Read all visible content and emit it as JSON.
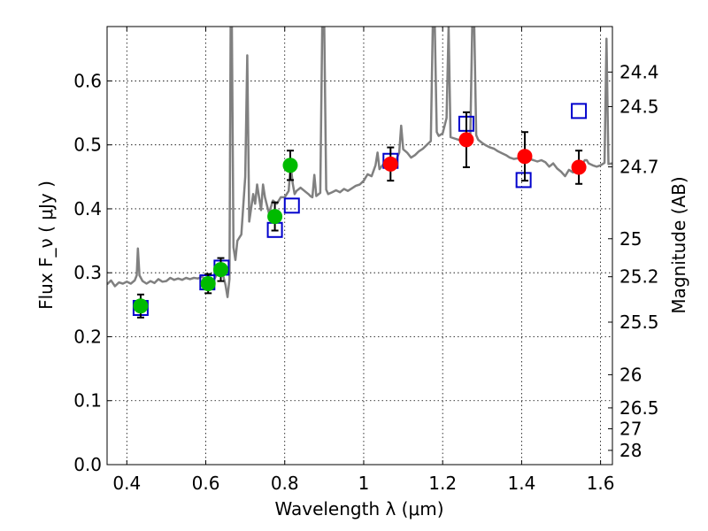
{
  "chart_data": {
    "type": "scatter",
    "xlabel": "Wavelength  λ (μm)",
    "ylabel": "Flux  F_ν  ( μJy )",
    "ylabel_right": "Magnitude (AB)",
    "xlim": [
      0.35,
      1.63
    ],
    "ylim": [
      0.0,
      0.685
    ],
    "grid": true,
    "x_ticks": [
      {
        "value": 0.4,
        "label": "0.4"
      },
      {
        "value": 0.6,
        "label": "0.6"
      },
      {
        "value": 0.8,
        "label": "0.8"
      },
      {
        "value": 1.0,
        "label": "1"
      },
      {
        "value": 1.2,
        "label": "1.2"
      },
      {
        "value": 1.4,
        "label": "1.4"
      },
      {
        "value": 1.6,
        "label": "1.6"
      }
    ],
    "y_ticks": [
      {
        "value": 0.0,
        "label": "0.0"
      },
      {
        "value": 0.1,
        "label": "0.1"
      },
      {
        "value": 0.2,
        "label": "0.2"
      },
      {
        "value": 0.3,
        "label": "0.3"
      },
      {
        "value": 0.4,
        "label": "0.4"
      },
      {
        "value": 0.5,
        "label": "0.5"
      },
      {
        "value": 0.6,
        "label": "0.6"
      }
    ],
    "mag_ticks": [
      {
        "label": "24.4",
        "flux": 0.6138
      },
      {
        "label": "24.5",
        "flux": 0.5598
      },
      {
        "label": "24.7",
        "flux": 0.4656
      },
      {
        "label": "25",
        "flux": 0.3532
      },
      {
        "label": "25.2",
        "flux": 0.2938
      },
      {
        "label": "25.5",
        "flux": 0.2228
      },
      {
        "label": "26",
        "flux": 0.1406
      },
      {
        "label": "26.5",
        "flux": 0.0887
      },
      {
        "label": "27",
        "flux": 0.056
      },
      {
        "label": "28",
        "flux": 0.0223
      }
    ],
    "series": [
      {
        "marker": "circle",
        "color": "#00bb00",
        "points": [
          {
            "x": 0.435,
            "y": 0.248,
            "err": 0.018
          },
          {
            "x": 0.606,
            "y": 0.283,
            "err": 0.015
          },
          {
            "x": 0.638,
            "y": 0.305,
            "err": 0.018
          },
          {
            "x": 0.775,
            "y": 0.388,
            "err": 0.022
          },
          {
            "x": 0.814,
            "y": 0.468,
            "err": 0.023
          }
        ]
      },
      {
        "marker": "circle",
        "color": "#ff0000",
        "points": [
          {
            "x": 1.068,
            "y": 0.47,
            "err": 0.026
          },
          {
            "x": 1.26,
            "y": 0.508,
            "err": 0.043
          },
          {
            "x": 1.408,
            "y": 0.482,
            "err": 0.038
          },
          {
            "x": 1.545,
            "y": 0.465,
            "err": 0.026
          }
        ]
      },
      {
        "marker": "square-open",
        "color": "#0000cc",
        "points": [
          {
            "x": 0.435,
            "y": 0.245
          },
          {
            "x": 0.604,
            "y": 0.285
          },
          {
            "x": 0.64,
            "y": 0.308
          },
          {
            "x": 0.775,
            "y": 0.367
          },
          {
            "x": 0.818,
            "y": 0.405
          },
          {
            "x": 1.068,
            "y": 0.475
          },
          {
            "x": 1.26,
            "y": 0.533
          },
          {
            "x": 1.405,
            "y": 0.445
          },
          {
            "x": 1.545,
            "y": 0.553
          }
        ]
      }
    ],
    "model_spectrum": {
      "color": "#808080",
      "points": [
        [
          0.35,
          0.282
        ],
        [
          0.36,
          0.288
        ],
        [
          0.37,
          0.279
        ],
        [
          0.38,
          0.285
        ],
        [
          0.39,
          0.283
        ],
        [
          0.4,
          0.286
        ],
        [
          0.41,
          0.283
        ],
        [
          0.42,
          0.288
        ],
        [
          0.425,
          0.296
        ],
        [
          0.428,
          0.338
        ],
        [
          0.432,
          0.296
        ],
        [
          0.44,
          0.287
        ],
        [
          0.45,
          0.283
        ],
        [
          0.46,
          0.287
        ],
        [
          0.47,
          0.284
        ],
        [
          0.48,
          0.29
        ],
        [
          0.49,
          0.286
        ],
        [
          0.5,
          0.287
        ],
        [
          0.51,
          0.292
        ],
        [
          0.52,
          0.289
        ],
        [
          0.53,
          0.291
        ],
        [
          0.54,
          0.289
        ],
        [
          0.55,
          0.292
        ],
        [
          0.56,
          0.29
        ],
        [
          0.57,
          0.292
        ],
        [
          0.58,
          0.291
        ],
        [
          0.59,
          0.294
        ],
        [
          0.6,
          0.289
        ],
        [
          0.61,
          0.292
        ],
        [
          0.62,
          0.288
        ],
        [
          0.63,
          0.3
        ],
        [
          0.64,
          0.305
        ],
        [
          0.65,
          0.281
        ],
        [
          0.655,
          0.262
        ],
        [
          0.66,
          0.29
        ],
        [
          0.663,
          0.685
        ],
        [
          0.666,
          0.685
        ],
        [
          0.67,
          0.34
        ],
        [
          0.675,
          0.32
        ],
        [
          0.68,
          0.35
        ],
        [
          0.69,
          0.36
        ],
        [
          0.7,
          0.45
        ],
        [
          0.705,
          0.64
        ],
        [
          0.71,
          0.38
        ],
        [
          0.72,
          0.423
        ],
        [
          0.725,
          0.408
        ],
        [
          0.73,
          0.438
        ],
        [
          0.74,
          0.398
        ],
        [
          0.745,
          0.438
        ],
        [
          0.75,
          0.418
        ],
        [
          0.76,
          0.393
        ],
        [
          0.77,
          0.413
        ],
        [
          0.78,
          0.408
        ],
        [
          0.79,
          0.418
        ],
        [
          0.8,
          0.418
        ],
        [
          0.81,
          0.428
        ],
        [
          0.815,
          0.47
        ],
        [
          0.82,
          0.44
        ],
        [
          0.825,
          0.423
        ],
        [
          0.83,
          0.428
        ],
        [
          0.84,
          0.433
        ],
        [
          0.85,
          0.428
        ],
        [
          0.86,
          0.423
        ],
        [
          0.865,
          0.42
        ],
        [
          0.87,
          0.418
        ],
        [
          0.875,
          0.453
        ],
        [
          0.88,
          0.42
        ],
        [
          0.89,
          0.425
        ],
        [
          0.895,
          0.685
        ],
        [
          0.9,
          0.685
        ],
        [
          0.905,
          0.43
        ],
        [
          0.91,
          0.423
        ],
        [
          0.92,
          0.426
        ],
        [
          0.93,
          0.429
        ],
        [
          0.94,
          0.426
        ],
        [
          0.95,
          0.431
        ],
        [
          0.96,
          0.428
        ],
        [
          0.97,
          0.432
        ],
        [
          0.98,
          0.436
        ],
        [
          0.99,
          0.438
        ],
        [
          1.0,
          0.444
        ],
        [
          1.01,
          0.454
        ],
        [
          1.02,
          0.451
        ],
        [
          1.03,
          0.468
        ],
        [
          1.035,
          0.488
        ],
        [
          1.04,
          0.462
        ],
        [
          1.05,
          0.47
        ],
        [
          1.06,
          0.466
        ],
        [
          1.07,
          0.463
        ],
        [
          1.08,
          0.473
        ],
        [
          1.09,
          0.488
        ],
        [
          1.095,
          0.53
        ],
        [
          1.1,
          0.493
        ],
        [
          1.11,
          0.488
        ],
        [
          1.12,
          0.48
        ],
        [
          1.13,
          0.484
        ],
        [
          1.14,
          0.49
        ],
        [
          1.15,
          0.494
        ],
        [
          1.16,
          0.5
        ],
        [
          1.17,
          0.506
        ],
        [
          1.175,
          0.685
        ],
        [
          1.18,
          0.685
        ],
        [
          1.185,
          0.52
        ],
        [
          1.19,
          0.514
        ],
        [
          1.2,
          0.518
        ],
        [
          1.21,
          0.542
        ],
        [
          1.215,
          0.685
        ],
        [
          1.22,
          0.512
        ],
        [
          1.23,
          0.51
        ],
        [
          1.24,
          0.508
        ],
        [
          1.25,
          0.505
        ],
        [
          1.26,
          0.51
        ],
        [
          1.27,
          0.512
        ],
        [
          1.275,
          0.685
        ],
        [
          1.28,
          0.685
        ],
        [
          1.285,
          0.515
        ],
        [
          1.29,
          0.508
        ],
        [
          1.3,
          0.503
        ],
        [
          1.31,
          0.499
        ],
        [
          1.32,
          0.496
        ],
        [
          1.33,
          0.494
        ],
        [
          1.34,
          0.49
        ],
        [
          1.35,
          0.487
        ],
        [
          1.36,
          0.484
        ],
        [
          1.37,
          0.48
        ],
        [
          1.38,
          0.478
        ],
        [
          1.39,
          0.479
        ],
        [
          1.4,
          0.481
        ],
        [
          1.41,
          0.483
        ],
        [
          1.42,
          0.478
        ],
        [
          1.43,
          0.476
        ],
        [
          1.44,
          0.474
        ],
        [
          1.45,
          0.476
        ],
        [
          1.46,
          0.473
        ],
        [
          1.47,
          0.466
        ],
        [
          1.48,
          0.471
        ],
        [
          1.49,
          0.463
        ],
        [
          1.5,
          0.458
        ],
        [
          1.51,
          0.451
        ],
        [
          1.52,
          0.461
        ],
        [
          1.53,
          0.457
        ],
        [
          1.54,
          0.459
        ],
        [
          1.55,
          0.466
        ],
        [
          1.56,
          0.476
        ],
        [
          1.565,
          0.476
        ],
        [
          1.57,
          0.471
        ],
        [
          1.58,
          0.468
        ],
        [
          1.59,
          0.466
        ],
        [
          1.6,
          0.468
        ],
        [
          1.61,
          0.472
        ],
        [
          1.615,
          0.666
        ],
        [
          1.62,
          0.47
        ],
        [
          1.63,
          0.471
        ]
      ]
    }
  }
}
